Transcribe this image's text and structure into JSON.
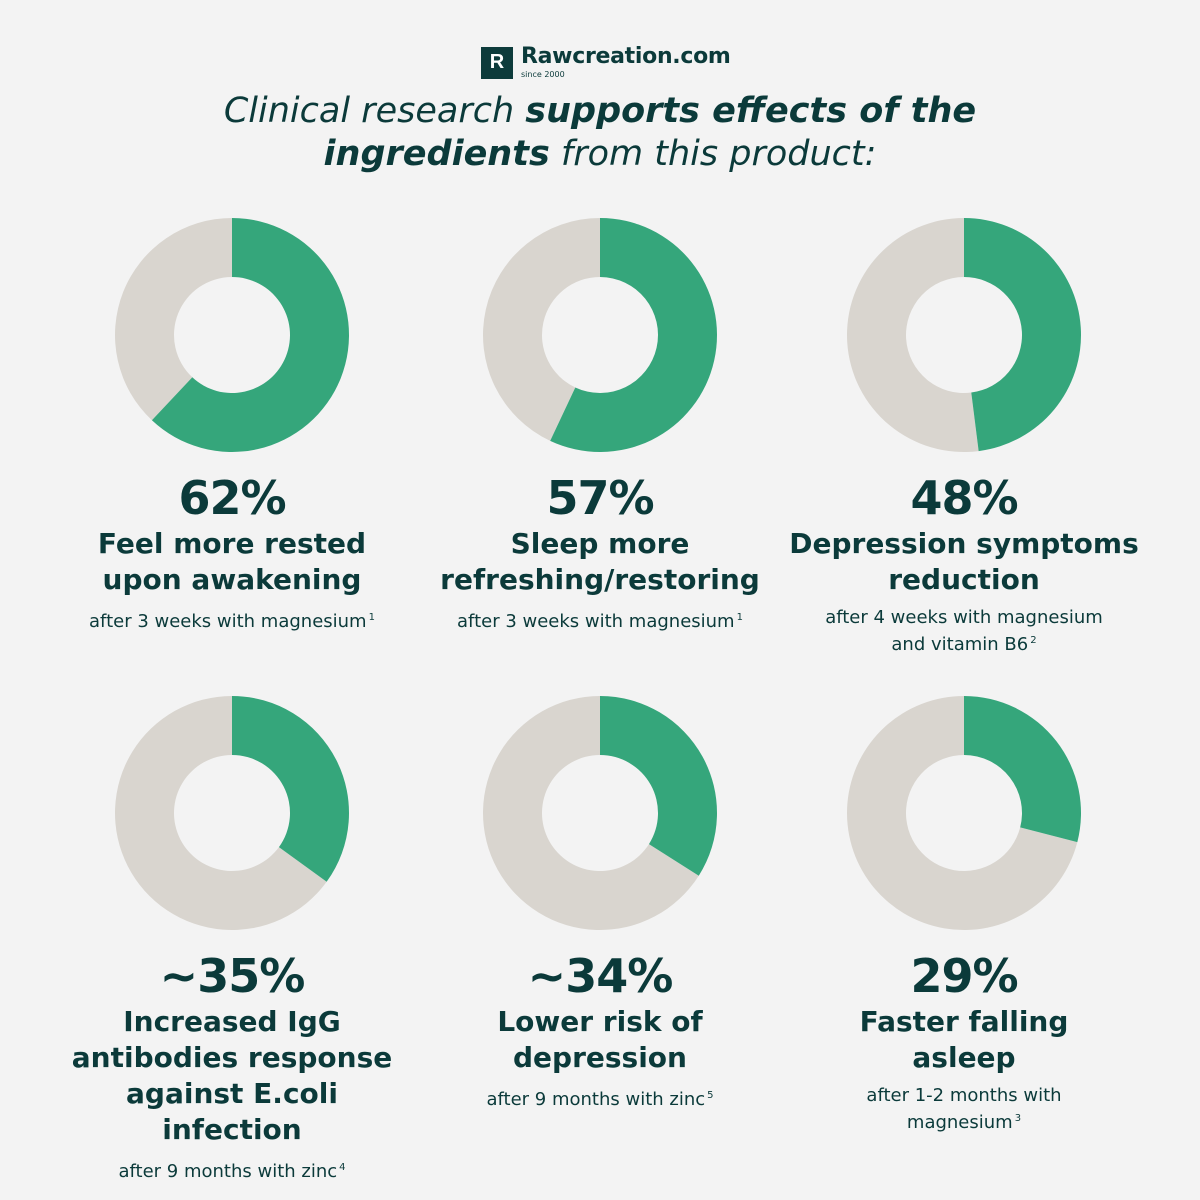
{
  "brand": {
    "logo_letter": "R",
    "name": "Rawcreation.com",
    "since": "since 2000"
  },
  "headline": {
    "part1": "Clinical research ",
    "bold1": "supports effects of the",
    "bold2": "ingredients",
    "part2": " from this product:"
  },
  "colors": {
    "filled": "#35a67b",
    "remainder": "#d9d5cf",
    "text": "#0b3a3a",
    "background": "#f3f3f3"
  },
  "chart_data": {
    "type": "pie",
    "charts": [
      {
        "value_label": "62%",
        "value": 62,
        "label": "Feel more rested upon awakening",
        "label_lines": [
          "Feel more rested",
          "upon awakening"
        ],
        "note_lines": [
          "after 3 weeks with magnesium"
        ],
        "ref": "1"
      },
      {
        "value_label": "57%",
        "value": 57,
        "label": "Sleep more refreshing/restoring",
        "label_lines": [
          "Sleep more",
          "refreshing/restoring"
        ],
        "note_lines": [
          "after 3 weeks with magnesium"
        ],
        "ref": "1"
      },
      {
        "value_label": "48%",
        "value": 48,
        "label": "Depression symptoms reduction",
        "label_lines": [
          "Depression symptoms",
          "reduction"
        ],
        "note_lines": [
          "after 4 weeks with magnesium",
          "and vitamin B6"
        ],
        "ref": "2"
      },
      {
        "value_label": "~35%",
        "value": 35,
        "label": "Increased IgG antibodies response against E.coli infection",
        "label_lines": [
          "Increased IgG",
          "antibodies response",
          "against E.coli infection"
        ],
        "note_lines": [
          "after 9 months with zinc"
        ],
        "ref": "4"
      },
      {
        "value_label": "~34%",
        "value": 34,
        "label": "Lower risk of depression",
        "label_lines": [
          "Lower risk of",
          "depression"
        ],
        "note_lines": [
          "after 9 months with zinc"
        ],
        "ref": "5"
      },
      {
        "value_label": "29%",
        "value": 29,
        "label": "Faster falling asleep",
        "label_lines": [
          "Faster falling",
          "asleep"
        ],
        "note_lines": [
          "after 1-2 months with",
          "magnesium"
        ],
        "ref": "3"
      }
    ]
  }
}
